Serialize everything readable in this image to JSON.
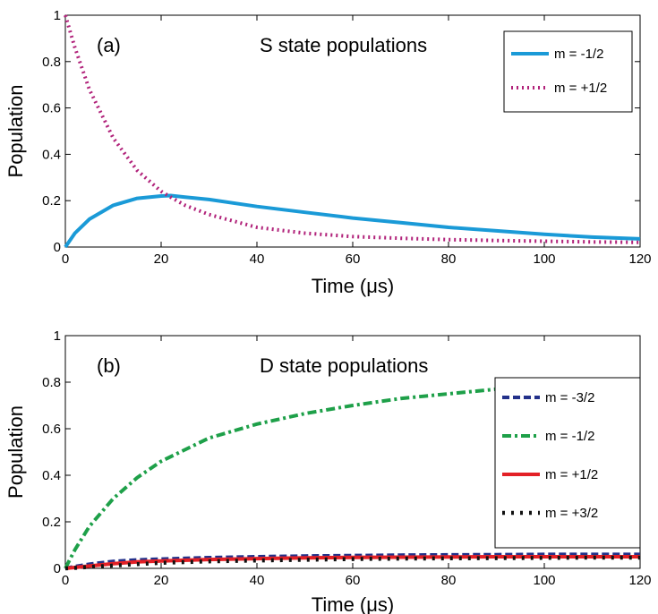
{
  "chart_data": [
    {
      "type": "line",
      "panel_label": "(a)",
      "title": "S state populations",
      "xlabel": "Time (μs)",
      "ylabel": "Population",
      "xlim": [
        0,
        120
      ],
      "ylim": [
        0,
        1
      ],
      "xticks": [
        "0",
        "20",
        "40",
        "60",
        "80",
        "100",
        "120"
      ],
      "yticks": [
        "0",
        "0.2",
        "0.4",
        "0.6",
        "0.8",
        "1"
      ],
      "legend_position": "top-right",
      "x": [
        0,
        2,
        5,
        10,
        15,
        20,
        22,
        25,
        30,
        40,
        50,
        60,
        70,
        80,
        90,
        100,
        110,
        120
      ],
      "series": [
        {
          "name": "m = -1/2",
          "color": "#1a9ad7",
          "dash": "solid",
          "values": [
            0.0,
            0.06,
            0.12,
            0.18,
            0.21,
            0.22,
            0.222,
            0.215,
            0.205,
            0.175,
            0.15,
            0.125,
            0.105,
            0.085,
            0.07,
            0.055,
            0.043,
            0.035
          ]
        },
        {
          "name": "m = +1/2",
          "color": "#b1227a",
          "dash": "dot",
          "values": [
            1.0,
            0.86,
            0.68,
            0.47,
            0.33,
            0.24,
            0.215,
            0.18,
            0.14,
            0.085,
            0.06,
            0.045,
            0.038,
            0.032,
            0.028,
            0.025,
            0.022,
            0.02
          ]
        }
      ]
    },
    {
      "type": "line",
      "panel_label": "(b)",
      "title": "D state populations",
      "xlabel": "Time (μs)",
      "ylabel": "Population",
      "xlim": [
        0,
        120
      ],
      "ylim": [
        0,
        1
      ],
      "xticks": [
        "0",
        "20",
        "40",
        "60",
        "80",
        "100",
        "120"
      ],
      "yticks": [
        "0",
        "0.2",
        "0.4",
        "0.6",
        "0.8",
        "1"
      ],
      "legend_position": "right",
      "x": [
        0,
        1,
        2,
        5,
        10,
        15,
        20,
        30,
        40,
        50,
        60,
        70,
        80,
        90,
        100,
        110,
        120
      ],
      "series": [
        {
          "name": "m = -3/2",
          "color": "#23318a",
          "dash": "dash",
          "values": [
            0.0,
            0.004,
            0.008,
            0.018,
            0.03,
            0.036,
            0.04,
            0.046,
            0.05,
            0.053,
            0.055,
            0.057,
            0.058,
            0.059,
            0.06,
            0.06,
            0.06
          ]
        },
        {
          "name": "m = -1/2",
          "color": "#1ea049",
          "dash": "dashdot",
          "values": [
            0.0,
            0.04,
            0.08,
            0.18,
            0.3,
            0.39,
            0.46,
            0.56,
            0.62,
            0.665,
            0.7,
            0.73,
            0.75,
            0.77,
            0.78,
            0.79,
            0.8
          ]
        },
        {
          "name": "m = +1/2",
          "color": "#e32026",
          "dash": "solid",
          "values": [
            0.0,
            0.002,
            0.004,
            0.01,
            0.02,
            0.028,
            0.032,
            0.038,
            0.042,
            0.045,
            0.047,
            0.048,
            0.049,
            0.05,
            0.05,
            0.05,
            0.05
          ]
        },
        {
          "name": "m = +3/2",
          "color": "#111111",
          "dash": "dotbig",
          "values": [
            0.0,
            0.001,
            0.002,
            0.006,
            0.012,
            0.018,
            0.024,
            0.03,
            0.034,
            0.037,
            0.04,
            0.042,
            0.043,
            0.044,
            0.045,
            0.046,
            0.046
          ]
        }
      ]
    }
  ]
}
